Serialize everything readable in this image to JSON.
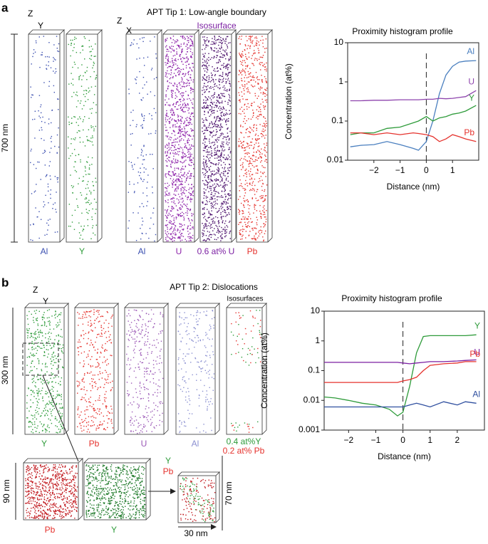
{
  "figure": {
    "a": {
      "letter": "a",
      "title": "APT Tip 1: Low-angle boundary",
      "isosurface": "Isosurface",
      "scale": "700 nm",
      "axes1": [
        "Z",
        "Y"
      ],
      "axes2": [
        "Z",
        "X"
      ],
      "columns": [
        "Al",
        "Y",
        "Al",
        "U",
        "0.6 at% U",
        "Pb"
      ]
    },
    "b": {
      "letter": "b",
      "title": "APT Tip 2: Dislocations",
      "isosurfaces": "Isosurfaces",
      "scale": "300 nm",
      "axes": [
        "Z",
        "Y"
      ],
      "columns": [
        "Y",
        "Pb",
        "U",
        "Al"
      ],
      "iso_labels": [
        "0.4 at%Y",
        "0.2 at% Pb"
      ],
      "zoom_scale": "90 nm",
      "zoom_labels": [
        "Pb",
        "Y"
      ],
      "detail_labels": [
        "Y",
        "Pb"
      ],
      "detail_height": "70 nm",
      "detail_width": "30 nm"
    }
  },
  "chart_data": [
    {
      "type": "line",
      "title": "Proximity histogram profile",
      "xlabel": "Distance (nm)",
      "ylabel": "Concentration (at%)",
      "log_y": true,
      "xlim": [
        -3,
        2
      ],
      "ylim": [
        0.01,
        10
      ],
      "xticks": [
        {
          "value": -2,
          "label": "−2"
        },
        {
          "value": -1,
          "label": "−1"
        },
        0,
        1
      ],
      "yticks": [
        0.01,
        0.1,
        1,
        10
      ],
      "vline": 0,
      "x": [
        -2.9,
        -2.5,
        -2,
        -1.5,
        -1,
        -0.5,
        -0.3,
        0,
        0.25,
        0.5,
        0.75,
        1,
        1.25,
        1.5,
        1.9
      ],
      "series": [
        {
          "name": "Al",
          "color": "#4a7fbf",
          "values": [
            0.022,
            0.024,
            0.025,
            0.03,
            0.025,
            0.02,
            0.018,
            0.03,
            0.1,
            0.5,
            1.5,
            2.5,
            3.2,
            3.4,
            3.5
          ]
        },
        {
          "name": "U",
          "color": "#8e44ad",
          "values": [
            0.33,
            0.33,
            0.34,
            0.34,
            0.35,
            0.35,
            0.35,
            0.36,
            0.36,
            0.38,
            0.37,
            0.38,
            0.4,
            0.42,
            0.6
          ]
        },
        {
          "name": "Y",
          "color": "#2e9b3a",
          "values": [
            0.045,
            0.05,
            0.05,
            0.065,
            0.07,
            0.09,
            0.1,
            0.13,
            0.1,
            0.12,
            0.13,
            0.15,
            0.16,
            0.18,
            0.25
          ]
        },
        {
          "name": "Pb",
          "color": "#e5322d",
          "values": [
            0.05,
            0.05,
            0.045,
            0.05,
            0.045,
            0.05,
            0.048,
            0.045,
            0.04,
            0.03,
            0.035,
            0.045,
            0.04,
            0.035,
            0.03
          ]
        }
      ]
    },
    {
      "type": "line",
      "title": "Proximity histogram profile",
      "xlabel": "Distance (nm)",
      "ylabel": "Concentration (at%)",
      "log_y": true,
      "xlim": [
        -2.9,
        3
      ],
      "ylim": [
        0.001,
        10
      ],
      "xticks": [
        {
          "value": -2,
          "label": "−2"
        },
        {
          "value": -1,
          "label": "−1"
        },
        0,
        1,
        2
      ],
      "yticks": [
        0.001,
        0.01,
        0.1,
        1,
        10
      ],
      "vline": 0,
      "x": [
        -2.9,
        -2.5,
        -2,
        -1.5,
        -1,
        -0.5,
        -0.2,
        0,
        0.25,
        0.5,
        0.75,
        1,
        1.5,
        2,
        2.3,
        2.7
      ],
      "series": [
        {
          "name": "Y",
          "color": "#2e9b3a",
          "values": [
            0.013,
            0.012,
            0.01,
            0.008,
            0.007,
            0.005,
            0.003,
            0.004,
            0.03,
            0.4,
            1.4,
            1.5,
            1.5,
            1.5,
            1.5,
            1.6
          ]
        },
        {
          "name": "U",
          "color": "#7b1fa2",
          "values": [
            0.19,
            0.19,
            0.19,
            0.19,
            0.19,
            0.19,
            0.19,
            0.18,
            0.17,
            0.18,
            0.19,
            0.2,
            0.2,
            0.21,
            0.22,
            0.23
          ]
        },
        {
          "name": "Pb",
          "color": "#e5322d",
          "values": [
            0.04,
            0.04,
            0.04,
            0.04,
            0.04,
            0.04,
            0.04,
            0.045,
            0.05,
            0.06,
            0.1,
            0.15,
            0.17,
            0.18,
            0.2,
            0.2
          ]
        },
        {
          "name": "Al",
          "color": "#2f4f9f",
          "values": [
            0.006,
            0.006,
            0.006,
            0.006,
            0.006,
            0.006,
            0.006,
            0.006,
            0.007,
            0.008,
            0.007,
            0.006,
            0.009,
            0.007,
            0.009,
            0.008
          ]
        }
      ]
    }
  ]
}
